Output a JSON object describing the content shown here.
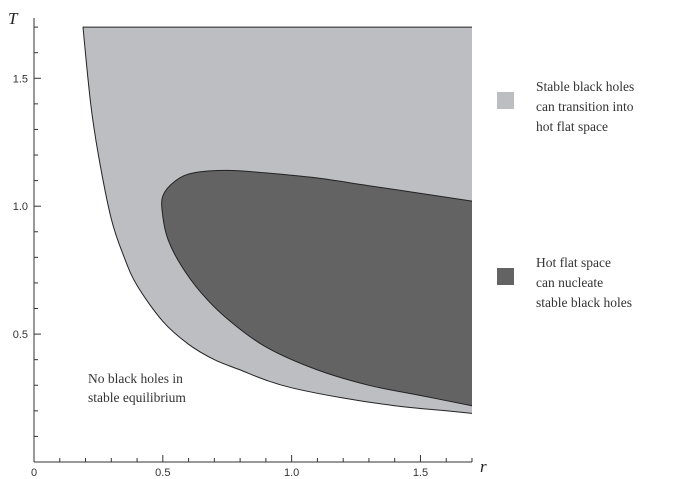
{
  "chart_data": {
    "type": "area",
    "xlabel": "r",
    "ylabel": "T",
    "xlim": [
      0,
      1.7
    ],
    "ylim": [
      0,
      1.72
    ],
    "x_ticks": [
      "0",
      "0.5",
      "1.0",
      "1.5"
    ],
    "y_ticks": [
      "0.5",
      "1.0",
      "1.5"
    ],
    "regions": [
      {
        "name": "Stable black holes can transition into hot flat space",
        "color": "#bdbec2",
        "boundary": [
          [
            0.19,
            1.7
          ],
          [
            0.22,
            1.4
          ],
          [
            0.25,
            1.2
          ],
          [
            0.3,
            0.95
          ],
          [
            0.35,
            0.8
          ],
          [
            0.4,
            0.69
          ],
          [
            0.5,
            0.55
          ],
          [
            0.6,
            0.46
          ],
          [
            0.7,
            0.4
          ],
          [
            0.8,
            0.36
          ],
          [
            0.9,
            0.32
          ],
          [
            1.0,
            0.29
          ],
          [
            1.2,
            0.25
          ],
          [
            1.4,
            0.22
          ],
          [
            1.6,
            0.2
          ],
          [
            1.7,
            0.19
          ]
        ]
      },
      {
        "name": "Hot flat space can nucleate stable black holes",
        "color": "#636364",
        "boundary": [
          [
            1.7,
            1.02
          ],
          [
            1.5,
            1.05
          ],
          [
            1.3,
            1.08
          ],
          [
            1.1,
            1.11
          ],
          [
            0.9,
            1.13
          ],
          [
            0.75,
            1.14
          ],
          [
            0.62,
            1.13
          ],
          [
            0.55,
            1.1
          ],
          [
            0.5,
            1.04
          ],
          [
            0.5,
            0.96
          ],
          [
            0.52,
            0.87
          ],
          [
            0.57,
            0.77
          ],
          [
            0.65,
            0.66
          ],
          [
            0.75,
            0.56
          ],
          [
            0.9,
            0.45
          ],
          [
            1.1,
            0.36
          ],
          [
            1.3,
            0.3
          ],
          [
            1.5,
            0.26
          ],
          [
            1.7,
            0.22
          ]
        ]
      }
    ],
    "legend": [
      {
        "lines": [
          "Stable black holes",
          "can transition into",
          "hot flat space"
        ],
        "color": "#bdbec2"
      },
      {
        "lines": [
          "Hot flat space",
          "can nucleate",
          "stable black holes"
        ],
        "color": "#636364"
      }
    ],
    "annotation": {
      "lines": [
        "No black holes in",
        "stable equilibrium"
      ]
    }
  }
}
